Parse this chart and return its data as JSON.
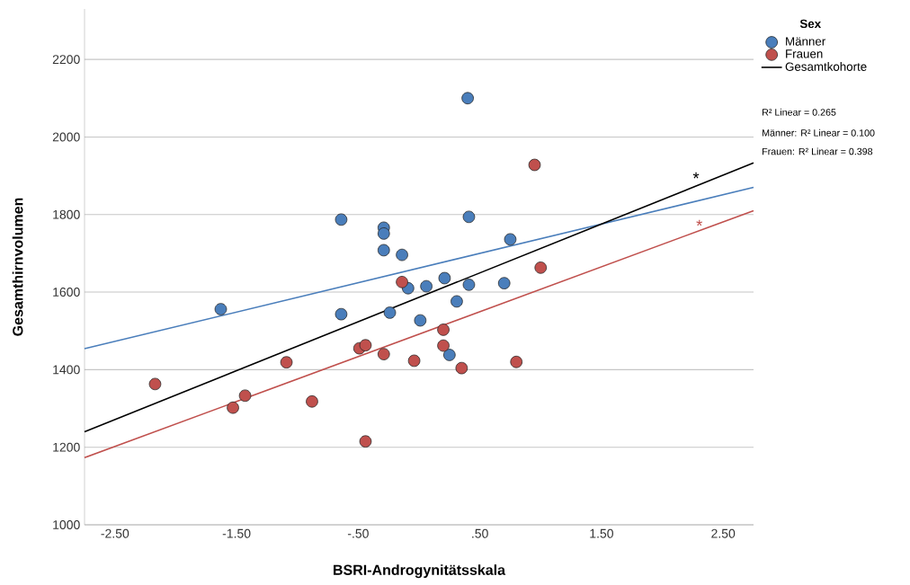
{
  "chart_data": {
    "type": "scatter",
    "xlabel": "BSRI-Androgynitätsskala",
    "ylabel": "Gesamthirnvolumen",
    "legend_title": "Sex",
    "xlim": [
      -2.75,
      2.75
    ],
    "ylim": [
      1000,
      2330
    ],
    "xticks": [
      {
        "value": -2.5,
        "label": "-2.50"
      },
      {
        "value": -1.5,
        "label": "-1.50"
      },
      {
        "value": -0.5,
        "label": "-.50"
      },
      {
        "value": 0.5,
        "label": ".50"
      },
      {
        "value": 1.5,
        "label": "1.50"
      },
      {
        "value": 2.5,
        "label": "2.50"
      }
    ],
    "yticks": [
      1000,
      1200,
      1400,
      1600,
      1800,
      2000,
      2200
    ],
    "grid": "y",
    "legend": "top right",
    "series": [
      {
        "name": "Männer",
        "color": "#4a7ebb",
        "x": [
          0.4,
          -0.64,
          -0.29,
          -0.29,
          0.41,
          -0.29,
          -0.14,
          0.75,
          0.21,
          0.41,
          0.7,
          0.06,
          -0.09,
          0.31,
          -1.63,
          -0.64,
          -0.24,
          0.01,
          0.25
        ],
        "values": [
          2100,
          1787,
          1766,
          1751,
          1794,
          1708,
          1696,
          1736,
          1636,
          1619,
          1623,
          1615,
          1610,
          1576,
          1556,
          1543,
          1547,
          1527,
          1438
        ]
      },
      {
        "name": "Frauen",
        "color": "#c0504d",
        "x": [
          -0.14,
          0.95,
          1.0,
          -2.17,
          -1.53,
          -1.43,
          -1.09,
          -0.88,
          -0.49,
          -0.44,
          -0.44,
          -0.29,
          -0.04,
          0.2,
          0.2,
          0.35,
          0.8
        ],
        "values": [
          1626,
          1928,
          1663,
          1363,
          1302,
          1333,
          1419,
          1318,
          1455,
          1463,
          1215,
          1440,
          1423,
          1503,
          1462,
          1404,
          1420
        ]
      },
      {
        "type": "line",
        "color": "#4a7ebb",
        "marker": "none",
        "x": [
          -2.75,
          2.75
        ],
        "values": [
          1454,
          1870
        ]
      },
      {
        "type": "line",
        "color": "#c0504d",
        "marker": "none",
        "x": [
          -2.75,
          2.75
        ],
        "values": [
          1173,
          1810
        ]
      },
      {
        "type": "line",
        "name": "Gesamtkohorte",
        "color": "#000000",
        "marker": "none",
        "x": [
          -2.75,
          2.75
        ],
        "values": [
          1240,
          1933
        ]
      }
    ],
    "annotations": [
      "*",
      "*",
      "R² Linear = 0.265",
      "Männer: R² Linear = 0.100",
      "Frauen: R² Linear = 0.398"
    ]
  }
}
